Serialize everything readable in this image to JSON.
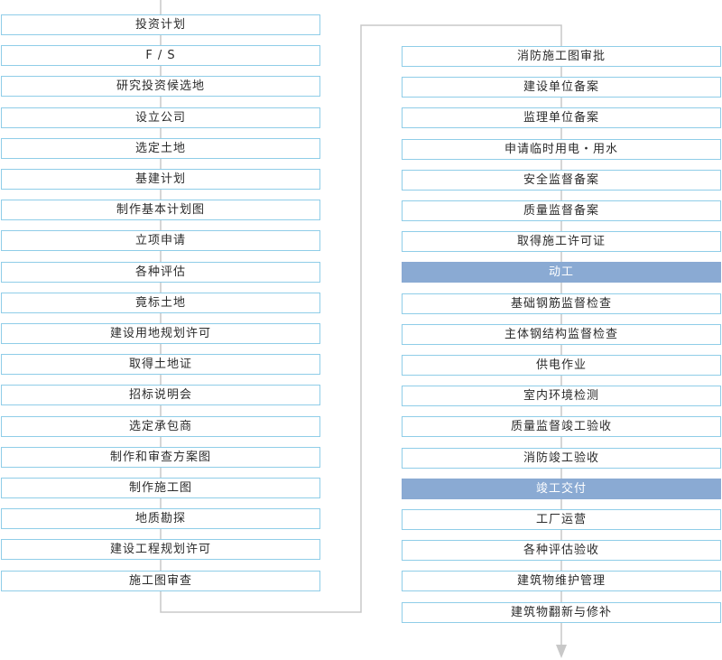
{
  "left_column": [
    "投资计划",
    "F / S",
    "研究投资候选地",
    "设立公司",
    "选定土地",
    "基建计划",
    "制作基本计划图",
    "立项申请",
    "各种评估",
    "竟标土地",
    "建设用地规划许可",
    "取得土地证",
    "招标说明会",
    "选定承包商",
    "制作和审查方案图",
    "制作施工图",
    "地质勘探",
    "建设工程规划许可",
    "施工图审查"
  ],
  "right_column": [
    {
      "label": "消防施工图审批",
      "milestone": false
    },
    {
      "label": "建设单位备案",
      "milestone": false
    },
    {
      "label": "监理单位备案",
      "milestone": false
    },
    {
      "label": "申请临时用电・用水",
      "milestone": false
    },
    {
      "label": "安全监督备案",
      "milestone": false
    },
    {
      "label": "质量监督备案",
      "milestone": false
    },
    {
      "label": "取得施工许可证",
      "milestone": false
    },
    {
      "label": "动工",
      "milestone": true
    },
    {
      "label": "基础钢筋监督检查",
      "milestone": false
    },
    {
      "label": "主体钢结构监督检查",
      "milestone": false
    },
    {
      "label": "供电作业",
      "milestone": false
    },
    {
      "label": "室内环境检测",
      "milestone": false
    },
    {
      "label": "质量监督竣工验收",
      "milestone": false
    },
    {
      "label": "消防竣工验收",
      "milestone": false
    },
    {
      "label": "竣工交付",
      "milestone": true
    },
    {
      "label": "工厂运营",
      "milestone": false
    },
    {
      "label": "各种评估验收",
      "milestone": false
    },
    {
      "label": "建筑物维护管理",
      "milestone": false
    },
    {
      "label": "建筑物翻新与修补",
      "milestone": false
    }
  ],
  "colors": {
    "box_border": "#8fcde8",
    "milestone_fill": "#8aaad3",
    "connector": "#c8c8c8"
  }
}
